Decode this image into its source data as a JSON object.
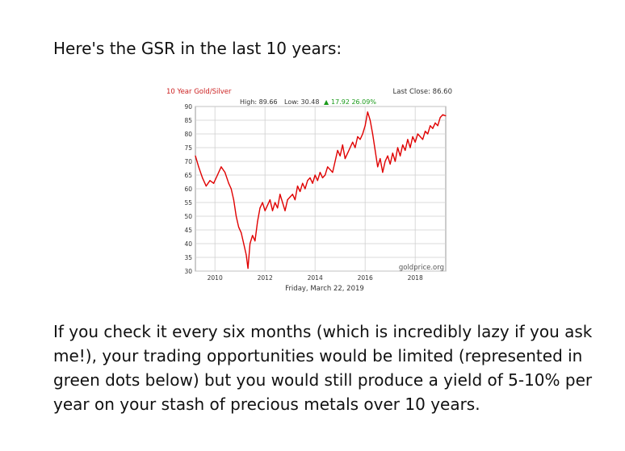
{
  "intro": "Here's the GSR in the last 10 years:",
  "paragraph": "If you check it every six months (which is incredibly lazy if you ask me!), your trading opportunities would be limited (represented in green dots below) but you would still produce a yield of 5-10% per year on your stash of precious metals over 10 years.",
  "chart_data": {
    "type": "line",
    "title": "10 Year Gold/Silver",
    "stats": {
      "high_label": "High: 89.66",
      "low_label": "Low: 30.48",
      "change_label": "17.92 26.09%",
      "last_close_label": "Last Close: 86.60"
    },
    "xlabel": "Friday, March 22, 2019",
    "watermark": "goldprice.org",
    "x_ticks": [
      2010,
      2012,
      2014,
      2016,
      2018
    ],
    "y_ticks": [
      30,
      35,
      40,
      45,
      50,
      55,
      60,
      65,
      70,
      75,
      80,
      85,
      90
    ],
    "xlim": [
      2009.22,
      2019.22
    ],
    "ylim": [
      30,
      90
    ],
    "grid": true,
    "colors": {
      "line": "#e00000",
      "title": "#cc2222",
      "change": "#1a9a1a",
      "grid": "#cfcfcf"
    },
    "series": [
      {
        "x": [
          2009.22,
          2009.35,
          2009.5,
          2009.65,
          2009.8,
          2009.95,
          2010.1,
          2010.25,
          2010.4,
          2010.55,
          2010.65,
          2010.75,
          2010.85,
          2010.95,
          2011.05,
          2011.15,
          2011.25,
          2011.32,
          2011.4,
          2011.5,
          2011.6,
          2011.7,
          2011.8,
          2011.9,
          2012.0,
          2012.1,
          2012.2,
          2012.3,
          2012.4,
          2012.5,
          2012.6,
          2012.7,
          2012.8,
          2012.9,
          2013.0,
          2013.1,
          2013.2,
          2013.3,
          2013.4,
          2013.5,
          2013.6,
          2013.7,
          2013.8,
          2013.9,
          2014.0,
          2014.1,
          2014.2,
          2014.3,
          2014.4,
          2014.5,
          2014.6,
          2014.7,
          2014.8,
          2014.9,
          2015.0,
          2015.1,
          2015.2,
          2015.3,
          2015.4,
          2015.5,
          2015.6,
          2015.7,
          2015.8,
          2015.9,
          2016.0,
          2016.1,
          2016.2,
          2016.3,
          2016.4,
          2016.5,
          2016.6,
          2016.7,
          2016.8,
          2016.9,
          2017.0,
          2017.1,
          2017.2,
          2017.3,
          2017.4,
          2017.5,
          2017.6,
          2017.7,
          2017.8,
          2017.9,
          2018.0,
          2018.1,
          2018.2,
          2018.3,
          2018.4,
          2018.5,
          2018.6,
          2018.7,
          2018.8,
          2018.9,
          2019.0,
          2019.1,
          2019.22
        ],
        "y": [
          72,
          68,
          64,
          61,
          63,
          62,
          65,
          68,
          66,
          62,
          60,
          56,
          50,
          46,
          44,
          40,
          36,
          31,
          40,
          43,
          41,
          48,
          53,
          55,
          52,
          54,
          56,
          52,
          55,
          53,
          58,
          55,
          52,
          56,
          57,
          58,
          56,
          61,
          59,
          62,
          60,
          63,
          64,
          62,
          65,
          63,
          66,
          64,
          65,
          68,
          67,
          66,
          70,
          74,
          72,
          76,
          71,
          73,
          75,
          77,
          75,
          79,
          78,
          80,
          83,
          88,
          85,
          80,
          74,
          68,
          71,
          66,
          70,
          72,
          69,
          73,
          70,
          75,
          72,
          76,
          74,
          78,
          75,
          79,
          77,
          80,
          79,
          78,
          81,
          80,
          83,
          82,
          84,
          83,
          86,
          87,
          86.6
        ]
      }
    ]
  }
}
